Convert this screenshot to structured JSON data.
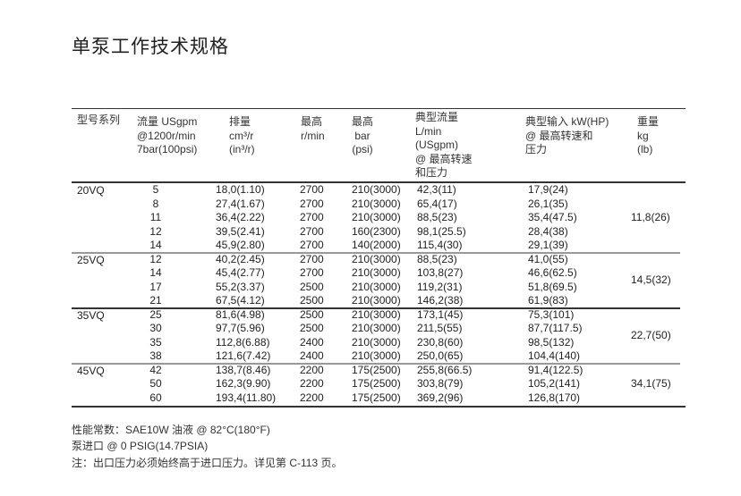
{
  "title": "单泵工作技术规格",
  "headers": {
    "series": "型号系列",
    "flow": "流量 USgpm\n@1200r/min\n7bar(100psi)",
    "displacement": "排量\ncm³/r\n(in³/r)",
    "max_speed": "最高\nr/min",
    "max_pressure": "最高\nbar\n(psi)",
    "typical_flow": "典型流量\nL/min\n(USgpm)\n@ 最高转速\n和压力",
    "typical_power": "典型输入 kW(HP)\n@ 最高转速和\n压力",
    "weight": "重量\nkg\n(lb)"
  },
  "groups": [
    {
      "series": "20VQ",
      "weight": "11,8(26)",
      "rows": [
        [
          "5",
          "18,0(1.10)",
          "2700",
          "210(3000)",
          "42,3(11)",
          "17,9(24)"
        ],
        [
          "8",
          "27,4(1.67)",
          "2700",
          "210(3000)",
          "65,4(17)",
          "26,1(35)"
        ],
        [
          "11",
          "36,4(2.22)",
          "2700",
          "210(3000)",
          "88,5(23)",
          "35,4(47.5)"
        ],
        [
          "12",
          "39,5(2.41)",
          "2700",
          "160(2300)",
          "98,1(25.5)",
          "28,4(38)"
        ],
        [
          "14",
          "45,9(2.80)",
          "2700",
          "140(2000)",
          "115,4(30)",
          "29,1(39)"
        ]
      ]
    },
    {
      "series": "25VQ",
      "weight": "14,5(32)",
      "rows": [
        [
          "12",
          "40,2(2.45)",
          "2700",
          "210(3000)",
          "88,5(23)",
          "41,0(55)"
        ],
        [
          "14",
          "45,4(2.77)",
          "2700",
          "210(3000)",
          "103,8(27)",
          "46,6(62.5)"
        ],
        [
          "17",
          "55,2(3.37)",
          "2500",
          "210(3000)",
          "119,2(31)",
          "51,8(69.5)"
        ],
        [
          "21",
          "67,5(4.12)",
          "2500",
          "210(3000)",
          "146,2(38)",
          "61,9(83)"
        ]
      ]
    },
    {
      "series": "35VQ",
      "weight": "22,7(50)",
      "rows": [
        [
          "25",
          "81,6(4.98)",
          "2500",
          "210(3000)",
          "173,1(45)",
          "75,3(101)"
        ],
        [
          "30",
          "97,7(5.96)",
          "2500",
          "210(3000)",
          "211,5(55)",
          "87,7(117.5)"
        ],
        [
          "35",
          "112,8(6.88)",
          "2400",
          "210(3000)",
          "230,8(60)",
          "98,5(132)"
        ],
        [
          "38",
          "121,6(7.42)",
          "2400",
          "210(3000)",
          "250,0(65)",
          "104,4(140)"
        ]
      ]
    },
    {
      "series": "45VQ",
      "weight": "34,1(75)",
      "rows": [
        [
          "42",
          "138,7(8.46)",
          "2200",
          "175(2500)",
          "255,8(66.5)",
          "91,4(122.5)"
        ],
        [
          "50",
          "162,3(9.90)",
          "2200",
          "175(2500)",
          "303,8(79)",
          "105,2(141)"
        ],
        [
          "60",
          "193,4(11.80)",
          "2200",
          "175(2500)",
          "369,2(96)",
          "126,8(170)"
        ]
      ]
    }
  ],
  "notes": [
    "性能常数：SAE10W 油液 @ 82°C(180°F)",
    "泵进口 @ 0 PSIG(14.7PSIA)",
    "注：出口压力必须始终高于进口压力。详见第 C-113 页。"
  ]
}
